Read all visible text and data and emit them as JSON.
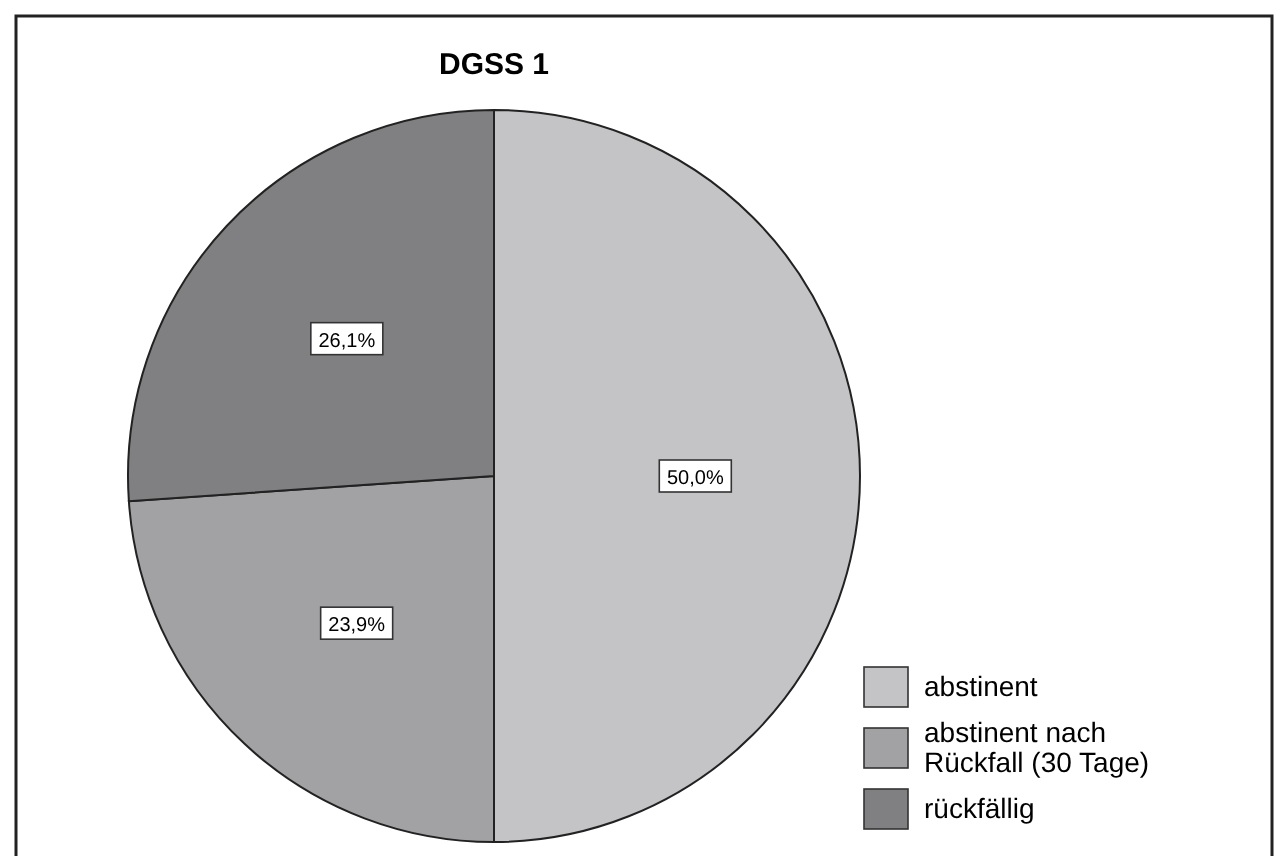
{
  "chart_data": {
    "type": "pie",
    "title": "DGSS 1",
    "categories": [
      "abstinent",
      "abstinent nach Rückfall (30 Tage)",
      "rückfällig"
    ],
    "values": [
      50.0,
      23.9,
      26.1
    ],
    "colors": [
      "#c4c4c6",
      "#a2a2a4",
      "#808082"
    ],
    "value_labels": [
      "50,0%",
      "23,9%",
      "26,1%"
    ],
    "legend": "bottom right"
  }
}
